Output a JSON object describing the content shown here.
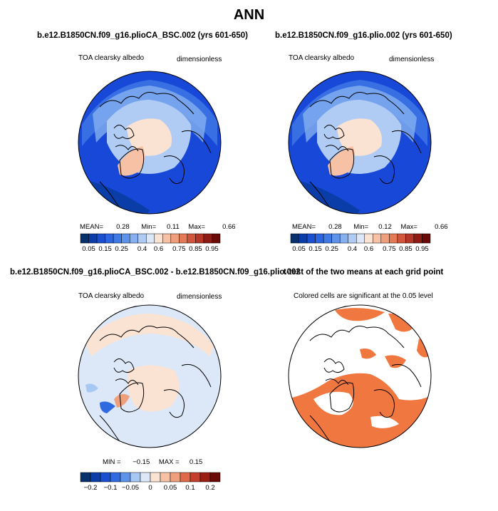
{
  "title": "ANN",
  "panels": [
    {
      "title": "b.e12.B1850CN.f09_g16.plioCA_BSC.002 (yrs 601-650)",
      "left_label": "TOA clearsky albedo",
      "right_label": "dimensionless",
      "stats": {
        "mean_label": "MEAN=",
        "mean": "0.28",
        "min_label": "Min=",
        "min": "0.11",
        "max_label": "Max=",
        "max": "0.66"
      },
      "colorbar": {
        "labels": [
          "0.05",
          "0.15",
          "0.25",
          "0.4",
          "0.6",
          "0.75",
          "0.85",
          "0.95"
        ]
      }
    },
    {
      "title": "b.e12.B1850CN.f09_g16.plio.002 (yrs 601-650)",
      "left_label": "TOA clearsky albedo",
      "right_label": "dimensionless",
      "stats": {
        "mean_label": "MEAN=",
        "mean": "0.28",
        "min_label": "Min=",
        "min": "0.12",
        "max_label": "Max=",
        "max": "0.66"
      },
      "colorbar": {
        "labels": [
          "0.05",
          "0.15",
          "0.25",
          "0.4",
          "0.6",
          "0.75",
          "0.85",
          "0.95"
        ]
      }
    },
    {
      "title": "b.e12.B1850CN.f09_g16.plioCA_BSC.002 - b.e12.B1850CN.f09_g16.plio.002",
      "left_label": "TOA clearsky albedo",
      "right_label": "dimensionless",
      "stats": {
        "min_label": "MIN =",
        "min": "−0.15",
        "max_label": "MAX =",
        "max": "0.15"
      },
      "colorbar": {
        "labels": [
          "−0.2",
          "−0.1",
          "−0.05",
          "0",
          "0.05",
          "0.1",
          "0.2"
        ]
      }
    },
    {
      "title": "t-test of the two means at each grid point",
      "left_label": "Colored cells are significant at the 0.05 level"
    }
  ],
  "chart_data": [
    {
      "type": "heatmap",
      "title": "b.e12.B1850CN.f09_g16.plioCA_BSC.002 (yrs 601-650)",
      "variable": "TOA clearsky albedo",
      "units": "dimensionless",
      "projection": "north polar stereographic",
      "mean": 0.28,
      "min": 0.11,
      "max": 0.66,
      "contour_levels": [
        0.05,
        0.1,
        0.15,
        0.2,
        0.25,
        0.3,
        0.35,
        0.4,
        0.5,
        0.6,
        0.65,
        0.7,
        0.75,
        0.8,
        0.85,
        0.9,
        0.95
      ],
      "colors": [
        "#08306b",
        "#0a3da8",
        "#1a4fd0",
        "#2b66e0",
        "#3f7ae6",
        "#5e93ec",
        "#86b0f0",
        "#b0ccf4",
        "#dce8f8",
        "#fbe3d4",
        "#f6c1a5",
        "#f09f7d",
        "#e57a57",
        "#d2563b",
        "#b63727",
        "#8e1c14",
        "#6a0a08"
      ]
    },
    {
      "type": "heatmap",
      "title": "b.e12.B1850CN.f09_g16.plio.002 (yrs 601-650)",
      "variable": "TOA clearsky albedo",
      "units": "dimensionless",
      "projection": "north polar stereographic",
      "mean": 0.28,
      "min": 0.12,
      "max": 0.66,
      "contour_levels": [
        0.05,
        0.1,
        0.15,
        0.2,
        0.25,
        0.3,
        0.35,
        0.4,
        0.5,
        0.6,
        0.65,
        0.7,
        0.75,
        0.8,
        0.85,
        0.9,
        0.95
      ],
      "colors": [
        "#08306b",
        "#0a3da8",
        "#1a4fd0",
        "#2b66e0",
        "#3f7ae6",
        "#5e93ec",
        "#86b0f0",
        "#b0ccf4",
        "#dce8f8",
        "#fbe3d4",
        "#f6c1a5",
        "#f09f7d",
        "#e57a57",
        "#d2563b",
        "#b63727",
        "#8e1c14",
        "#6a0a08"
      ]
    },
    {
      "type": "heatmap",
      "title": "b.e12.B1850CN.f09_g16.plioCA_BSC.002 - b.e12.B1850CN.f09_g16.plio.002",
      "variable": "TOA clearsky albedo",
      "units": "dimensionless",
      "projection": "north polar stereographic",
      "min": -0.15,
      "max": 0.15,
      "contour_levels": [
        -0.2,
        -0.15,
        -0.1,
        -0.075,
        -0.05,
        -0.025,
        0,
        0.025,
        0.05,
        0.075,
        0.1,
        0.15,
        0.2
      ],
      "colors": [
        "#08306b",
        "#0a3da8",
        "#1a4fd0",
        "#2f6ae0",
        "#5e93ec",
        "#a8c8f4",
        "#dce8f8",
        "#fbe3d4",
        "#f6c1a5",
        "#f09f7d",
        "#e06a48",
        "#c43f2c",
        "#9a1e14",
        "#6a0a08"
      ]
    },
    {
      "type": "heatmap",
      "title": "t-test of the two means at each grid point",
      "note": "Colored cells are significant at the 0.05 level",
      "significant_color": "#f07840"
    }
  ]
}
